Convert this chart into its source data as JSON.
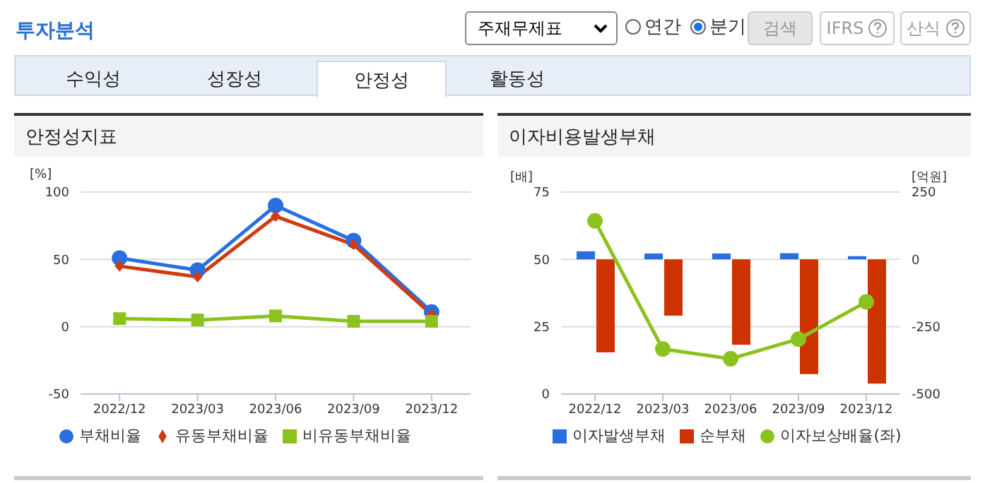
{
  "chart_data": [
    {
      "type": "other",
      "title": "투자분석",
      "annotations": [
        "주재무제표",
        "연간",
        "분기",
        "검색",
        "IFRS",
        "산식",
        "수익성",
        "성장성",
        "안정성",
        "활동성"
      ]
    },
    {
      "type": "line",
      "title": "안정성지표",
      "ylabel": "[%]",
      "categories": [
        "2022/12",
        "2023/03",
        "2023/06",
        "2023/09",
        "2023/12"
      ],
      "ylim": [
        -50,
        100
      ],
      "yticks": [
        -50,
        0,
        50,
        100
      ],
      "grid": "y",
      "legend": "bottom",
      "series": [
        {
          "name": "부채비율",
          "color": "#2a6fe0",
          "marker": "circle",
          "values": [
            51,
            42,
            90,
            64,
            11
          ]
        },
        {
          "name": "유동부채비율",
          "color": "#d23a10",
          "marker": "diamond",
          "values": [
            45,
            37,
            82,
            61,
            9
          ]
        },
        {
          "name": "비유동부채비율",
          "color": "#8cc21e",
          "marker": "square",
          "values": [
            6,
            5,
            8,
            4,
            4
          ]
        }
      ]
    },
    {
      "type": "bar",
      "title": "이자비용발생부채",
      "ylabel": "[배]",
      "y2label": "[억원]",
      "categories": [
        "2022/12",
        "2023/03",
        "2023/06",
        "2023/09",
        "2023/12"
      ],
      "ylim": [
        0,
        75
      ],
      "yticks": [
        0,
        25,
        50,
        75
      ],
      "y2lim": [
        -500,
        250
      ],
      "y2ticks": [
        -500,
        -250,
        0,
        250
      ],
      "grid": "y",
      "legend": "bottom",
      "series": [
        {
          "name": "이자발생부채",
          "color": "#2a6fe0",
          "axis": "y2",
          "values": [
            30,
            22,
            22,
            23,
            12
          ]
        },
        {
          "name": "순부채",
          "color": "#cc3300",
          "axis": "y2",
          "values": [
            -345,
            -209,
            -317,
            -426,
            -461
          ]
        },
        {
          "name": "이자보상배율(좌)",
          "type": "line",
          "color": "#8cc21e",
          "marker": "circle",
          "values": [
            64.3,
            16.7,
            13.1,
            20.4,
            34.2
          ]
        }
      ]
    }
  ]
}
